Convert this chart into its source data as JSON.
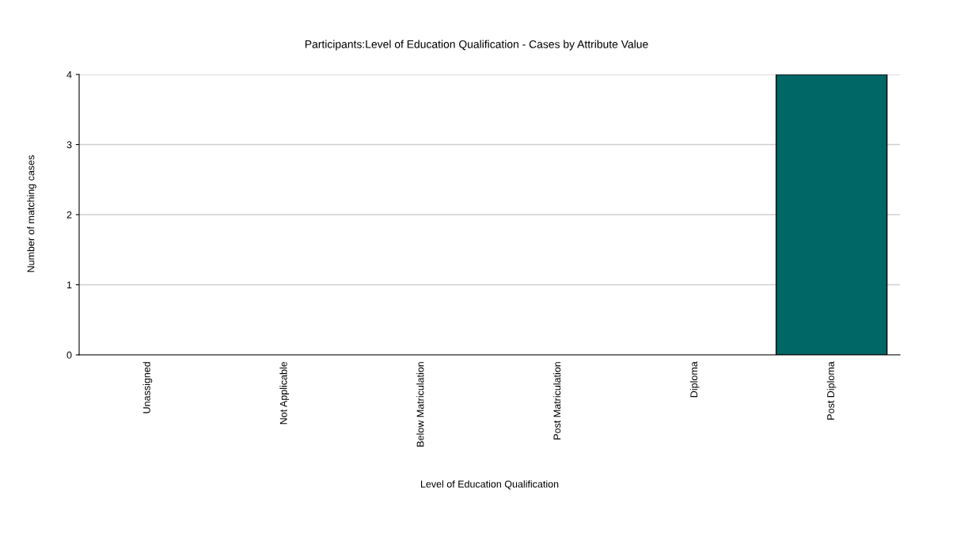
{
  "chart_data": {
    "type": "bar",
    "title": "Participants:Level of Education Qualification - Cases by Attribute Value",
    "xlabel": "Level of Education Qualification",
    "ylabel": "Number of matching cases",
    "categories": [
      "Unassigned",
      "Not Applicable",
      "Below Matriculation",
      "Post Matriculation",
      "Diploma",
      "Post Diploma"
    ],
    "values": [
      0,
      0,
      0,
      0,
      0,
      4
    ],
    "color": "#006666",
    "ylim": [
      0,
      4
    ],
    "yticks": [
      0,
      1,
      2,
      3,
      4
    ],
    "grid": "y"
  }
}
